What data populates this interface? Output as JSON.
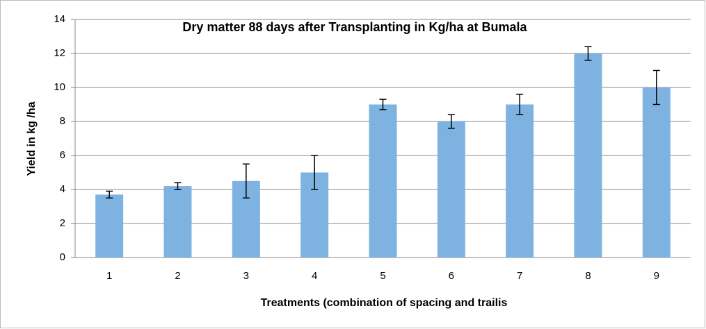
{
  "chart_data": {
    "type": "bar",
    "title": "Dry matter 88 days after Transplanting  in Kg/ha at Bumala",
    "x_label": "Treatments (combination of spacing and trailis",
    "y_label": "Yield in kg /ha",
    "categories": [
      "1",
      "2",
      "3",
      "4",
      "5",
      "6",
      "7",
      "8",
      "9"
    ],
    "values": [
      3.7,
      4.2,
      4.5,
      5,
      9,
      8,
      9,
      12,
      10
    ],
    "errors": [
      0.2,
      0.2,
      1,
      1,
      0.3,
      0.4,
      0.6,
      0.4,
      1
    ],
    "color": "#7eb3e1",
    "ylim": [
      0,
      14
    ],
    "yticks": [
      0,
      2,
      4,
      6,
      8,
      10,
      12,
      14
    ],
    "grid": true
  }
}
